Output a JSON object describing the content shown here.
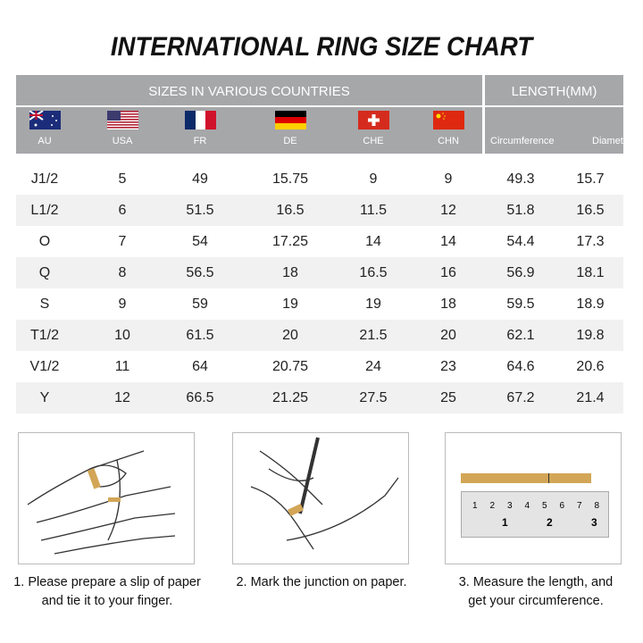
{
  "title": "INTERNATIONAL RING SIZE CHART",
  "header": {
    "sizes": "SIZES IN VARIOUS COUNTRIES",
    "length": "LENGTH(MM)",
    "countries": [
      {
        "code": "AU",
        "flag": "australia-flag"
      },
      {
        "code": "USA",
        "flag": "usa-flag"
      },
      {
        "code": "FR",
        "flag": "france-flag"
      },
      {
        "code": "DE",
        "flag": "germany-flag"
      },
      {
        "code": "CHE",
        "flag": "switzerland-flag"
      },
      {
        "code": "CHN",
        "flag": "china-flag"
      }
    ],
    "circumference": "Circumference",
    "diameter": "Diameter"
  },
  "rows": [
    [
      "J1/2",
      "5",
      "49",
      "15.75",
      "9",
      "9",
      "49.3",
      "15.7"
    ],
    [
      "L1/2",
      "6",
      "51.5",
      "16.5",
      "11.5",
      "12",
      "51.8",
      "16.5"
    ],
    [
      "O",
      "7",
      "54",
      "17.25",
      "14",
      "14",
      "54.4",
      "17.3"
    ],
    [
      "Q",
      "8",
      "56.5",
      "18",
      "16.5",
      "16",
      "56.9",
      "18.1"
    ],
    [
      "S",
      "9",
      "59",
      "19",
      "19",
      "18",
      "59.5",
      "18.9"
    ],
    [
      "T1/2",
      "10",
      "61.5",
      "20",
      "21.5",
      "20",
      "62.1",
      "19.8"
    ],
    [
      "V1/2",
      "11",
      "64",
      "20.75",
      "24",
      "23",
      "64.6",
      "20.6"
    ],
    [
      "Y",
      "12",
      "66.5",
      "21.25",
      "27.5",
      "25",
      "67.2",
      "21.4"
    ]
  ],
  "ruler": {
    "top": [
      "1",
      "2",
      "3",
      "4",
      "5",
      "6",
      "7",
      "8"
    ],
    "bottom": [
      "1",
      "2",
      "3"
    ]
  },
  "steps": [
    {
      "line1": "1. Please prepare a slip of paper",
      "line2": "and tie it to your finger."
    },
    {
      "line1": "2. Mark the junction on paper.",
      "line2": ""
    },
    {
      "line1": "3. Measure the length, and",
      "line2": "get your circumference."
    }
  ],
  "colors": {
    "header": "#a6a7a9",
    "stripe": "#f1f1f1",
    "paper": "#d2a656"
  }
}
